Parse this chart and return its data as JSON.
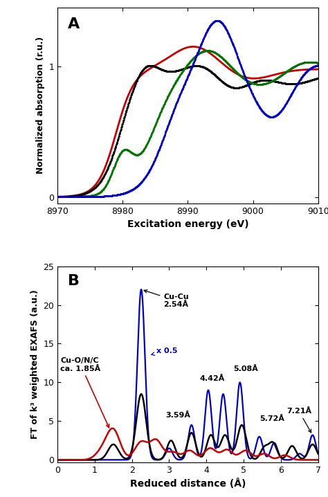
{
  "panel_A": {
    "label": "A",
    "xlabel": "Excitation energy (eV)",
    "ylabel": "Normalized absorption (r.u.)",
    "xlim": [
      8970,
      9010
    ],
    "ylim": [
      -0.05,
      1.45
    ],
    "yticks": [
      0,
      1
    ],
    "xticks": [
      8970,
      8980,
      8990,
      9000,
      9010
    ]
  },
  "panel_B": {
    "label": "B",
    "xlabel": "Reduced distance (Å)",
    "ylabel": "FT of k³ weighted EXAFS (a.u.)",
    "xlim": [
      0,
      7
    ],
    "ylim": [
      -0.3,
      25
    ],
    "yticks": [
      0,
      5,
      10,
      15,
      20,
      25
    ],
    "xticks": [
      0,
      1,
      2,
      3,
      4,
      5,
      6,
      7
    ]
  },
  "colors": {
    "red": "#cc0000",
    "black": "#000000",
    "green": "#007700",
    "blue": "#0000cc"
  }
}
